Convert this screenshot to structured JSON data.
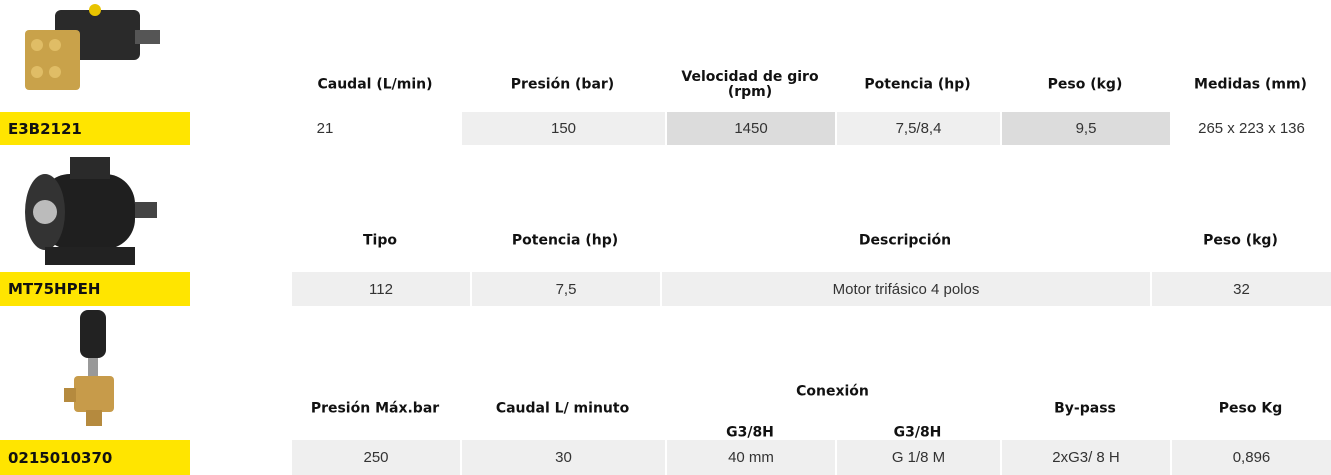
{
  "sections": [
    {
      "code": "E3B2121",
      "headers": [
        "Caudal (L/min)",
        "Presión (bar)",
        "Velocidad de giro (rpm)",
        "Potencia (hp)",
        "Peso (kg)",
        "Medidas (mm)"
      ],
      "values": [
        "21",
        "150",
        "1450",
        "7,5/8,4",
        "9,5",
        "265 x 223 x 136"
      ]
    },
    {
      "code": "MT75HPEH",
      "headers": [
        "Tipo",
        "Potencia (hp)",
        "Descripción",
        "Peso (kg)"
      ],
      "values": [
        "112",
        "7,5",
        "Motor trifásico 4 polos",
        "32"
      ]
    },
    {
      "code": "0215010370",
      "group_header": "Conexión",
      "headers": [
        "Presión Máx.bar",
        "Caudal L/ minuto",
        "G3/8H",
        "G3/8H",
        "By-pass",
        "Peso Kg"
      ],
      "values": [
        "250",
        "30",
        "40 mm",
        "G 1/8 M",
        "2xG3/ 8 H",
        "0,896"
      ]
    }
  ]
}
